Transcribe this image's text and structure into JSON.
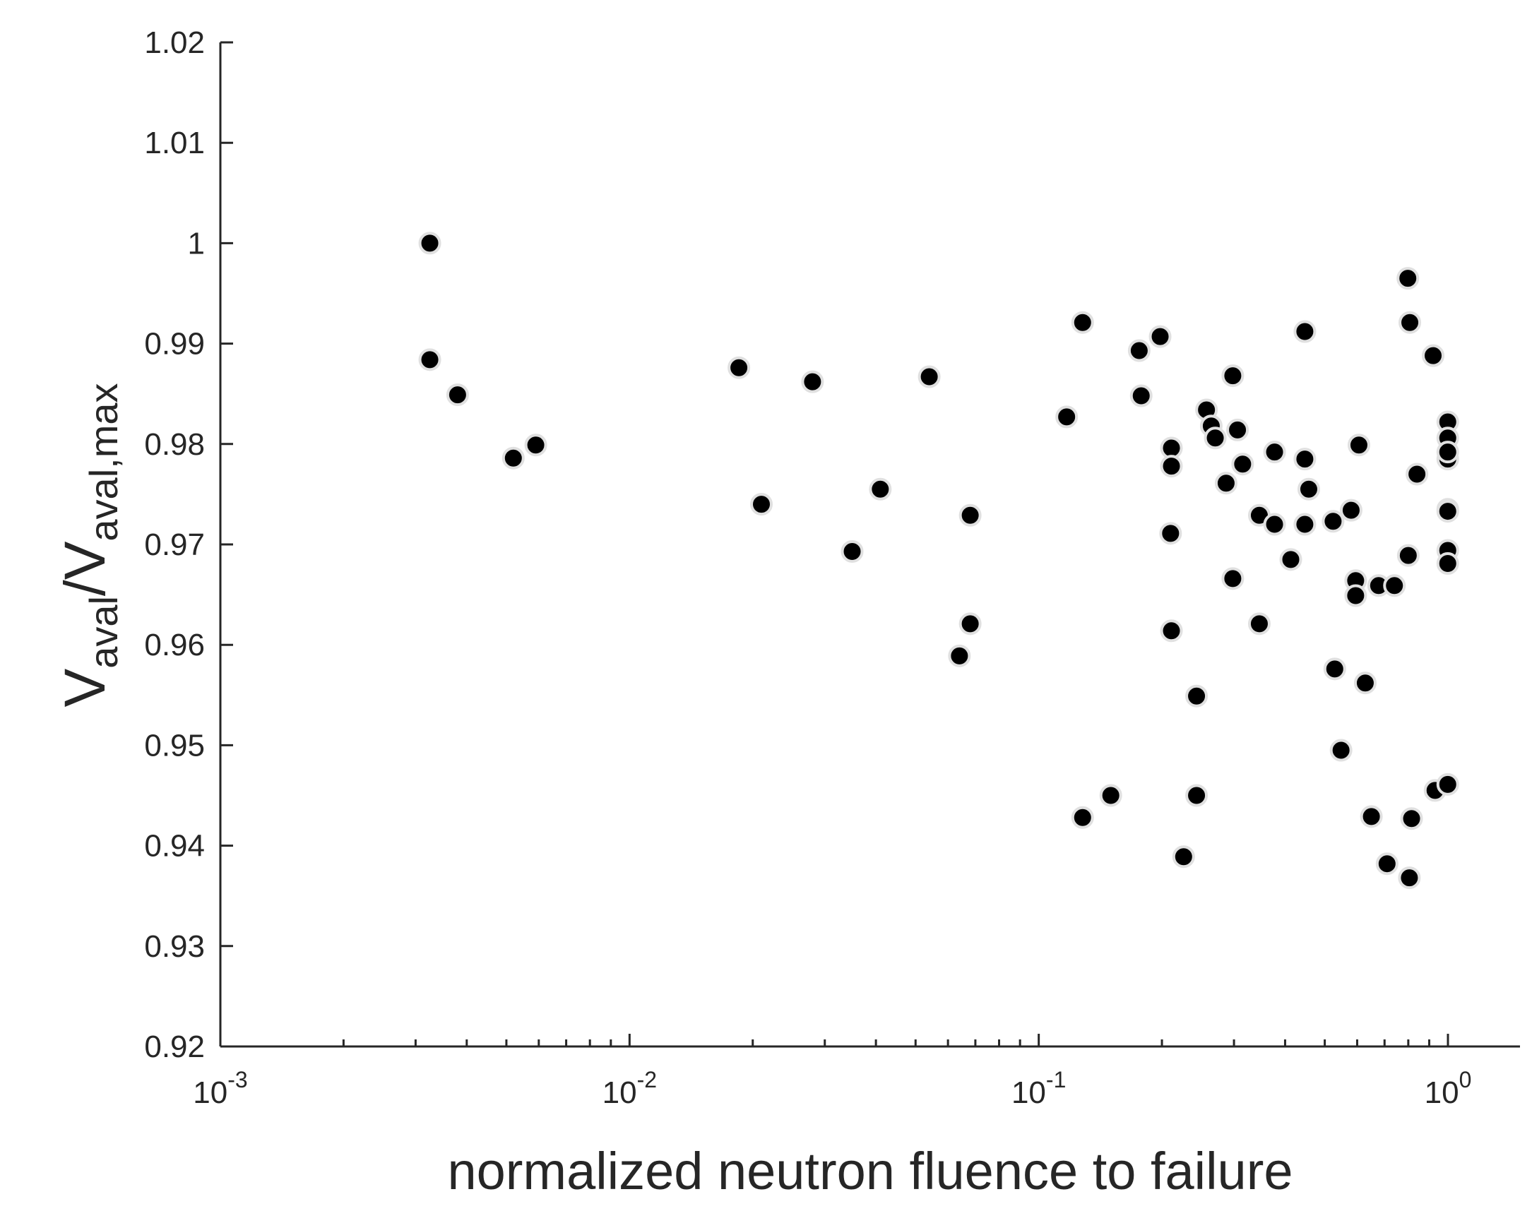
{
  "chart_data": {
    "type": "scatter",
    "xscale": "log",
    "xlim": [
      0.001,
      1.5
    ],
    "ylim": [
      0.92,
      1.02
    ],
    "grid": false,
    "legend": "none",
    "xlabel": "normalized neutron fluence to failure",
    "ylabel": {
      "base": "V",
      "sub": "aval",
      "sep": "/V",
      "sub2": "aval,max"
    },
    "xticks": [
      {
        "value": 0.001,
        "base": "10",
        "exp": "-3"
      },
      {
        "value": 0.01,
        "base": "10",
        "exp": "-2"
      },
      {
        "value": 0.1,
        "base": "10",
        "exp": "-1"
      },
      {
        "value": 1,
        "base": "10",
        "exp": "0"
      }
    ],
    "yticks": [
      {
        "value": 0.92,
        "label": "0.92"
      },
      {
        "value": 0.93,
        "label": "0.93"
      },
      {
        "value": 0.94,
        "label": "0.94"
      },
      {
        "value": 0.95,
        "label": "0.95"
      },
      {
        "value": 0.96,
        "label": "0.96"
      },
      {
        "value": 0.97,
        "label": "0.97"
      },
      {
        "value": 0.98,
        "label": "0.98"
      },
      {
        "value": 0.99,
        "label": "0.99"
      },
      {
        "value": 1.0,
        "label": "1"
      },
      {
        "value": 1.01,
        "label": "1.01"
      },
      {
        "value": 1.02,
        "label": "1.02"
      }
    ],
    "marker_color": "#000000",
    "marker_edge_color": "#e0e0e0",
    "points": [
      [
        0.00325,
        1.0
      ],
      [
        0.00325,
        0.9884
      ],
      [
        0.0038,
        0.9849
      ],
      [
        0.0052,
        0.9786
      ],
      [
        0.0059,
        0.9799
      ],
      [
        0.0185,
        0.9876
      ],
      [
        0.021,
        0.974
      ],
      [
        0.028,
        0.9862
      ],
      [
        0.035,
        0.9693
      ],
      [
        0.041,
        0.9755
      ],
      [
        0.054,
        0.9867
      ],
      [
        0.064,
        0.9589
      ],
      [
        0.068,
        0.9729
      ],
      [
        0.068,
        0.9621
      ],
      [
        0.117,
        0.9827
      ],
      [
        0.128,
        0.9921
      ],
      [
        0.128,
        0.9428
      ],
      [
        0.15,
        0.945
      ],
      [
        0.176,
        0.9893
      ],
      [
        0.178,
        0.9848
      ],
      [
        0.198,
        0.9907
      ],
      [
        0.211,
        0.9796
      ],
      [
        0.211,
        0.9778
      ],
      [
        0.21,
        0.9711
      ],
      [
        0.211,
        0.9614
      ],
      [
        0.226,
        0.9389
      ],
      [
        0.243,
        0.9549
      ],
      [
        0.243,
        0.945
      ],
      [
        0.257,
        0.9834
      ],
      [
        0.264,
        0.9818
      ],
      [
        0.27,
        0.9806
      ],
      [
        0.287,
        0.9761
      ],
      [
        0.298,
        0.9868
      ],
      [
        0.298,
        0.9666
      ],
      [
        0.306,
        0.9814
      ],
      [
        0.315,
        0.978
      ],
      [
        0.346,
        0.9729
      ],
      [
        0.346,
        0.9621
      ],
      [
        0.377,
        0.9792
      ],
      [
        0.377,
        0.972
      ],
      [
        0.413,
        0.9685
      ],
      [
        0.447,
        0.9785
      ],
      [
        0.447,
        0.972
      ],
      [
        0.447,
        0.9912
      ],
      [
        0.457,
        0.9755
      ],
      [
        0.524,
        0.9723
      ],
      [
        0.529,
        0.9576
      ],
      [
        0.548,
        0.9495
      ],
      [
        0.58,
        0.9734
      ],
      [
        0.595,
        0.9664
      ],
      [
        0.595,
        0.9649
      ],
      [
        0.606,
        0.9799
      ],
      [
        0.628,
        0.9562
      ],
      [
        0.65,
        0.9429
      ],
      [
        0.677,
        0.9659
      ],
      [
        0.71,
        0.9382
      ],
      [
        0.74,
        0.9659
      ],
      [
        0.798,
        0.9965
      ],
      [
        0.807,
        0.9921
      ],
      [
        0.8,
        0.9689
      ],
      [
        0.805,
        0.9368
      ],
      [
        0.815,
        0.9427
      ],
      [
        0.84,
        0.977
      ],
      [
        0.92,
        0.9888
      ],
      [
        0.93,
        0.9455
      ],
      [
        0.999,
        0.9822
      ],
      [
        0.999,
        0.9806
      ],
      [
        0.999,
        0.9785
      ],
      [
        0.999,
        0.9792
      ],
      [
        0.999,
        0.9735
      ],
      [
        0.999,
        0.9733
      ],
      [
        0.999,
        0.9694
      ],
      [
        0.999,
        0.9681
      ],
      [
        0.999,
        0.9461
      ]
    ]
  }
}
